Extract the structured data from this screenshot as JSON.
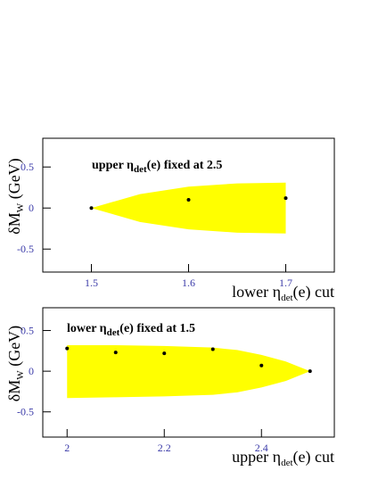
{
  "chart_data": [
    {
      "type": "scatter",
      "annotation": [
        "upper η",
        "det",
        "(e) fixed at 2.5"
      ],
      "x_label": [
        "lower η",
        "det",
        "(e) cut"
      ],
      "y_label": [
        "δM",
        "W",
        " (GeV)"
      ],
      "x": [
        1.5,
        1.6,
        1.7
      ],
      "series": [
        {
          "color": "#000000",
          "values": [
            0,
            0.1,
            0.12
          ]
        }
      ],
      "band": {
        "color": "#ffff00",
        "x": [
          1.5,
          1.55,
          1.6,
          1.65,
          1.7
        ],
        "upper": [
          0,
          0.17,
          0.26,
          0.3,
          0.31
        ],
        "lower": [
          0,
          -0.17,
          -0.26,
          -0.3,
          -0.31
        ]
      },
      "xlim": [
        1.45,
        1.75
      ],
      "xticks": [
        1.5,
        1.6,
        1.7
      ],
      "ylim": [
        -0.78,
        0.85
      ],
      "yticks": [
        -0.5,
        0,
        0.5
      ]
    },
    {
      "type": "scatter",
      "annotation": [
        "lower η",
        "det",
        "(e) fixed at 1.5"
      ],
      "x_label": [
        "upper η",
        "det",
        "(e) cut"
      ],
      "y_label": [
        "δM",
        "W",
        " (GeV)"
      ],
      "x": [
        2.0,
        2.1,
        2.2,
        2.3,
        2.4,
        2.5
      ],
      "series": [
        {
          "color": "#000000",
          "values": [
            0.28,
            0.23,
            0.22,
            0.27,
            0.07,
            0
          ]
        }
      ],
      "band": {
        "color": "#ffff00",
        "x": [
          2.0,
          2.1,
          2.2,
          2.3,
          2.35,
          2.4,
          2.45,
          2.5
        ],
        "upper": [
          0.32,
          0.32,
          0.31,
          0.29,
          0.26,
          0.2,
          0.12,
          0
        ],
        "lower": [
          -0.33,
          -0.32,
          -0.31,
          -0.29,
          -0.26,
          -0.2,
          -0.12,
          0
        ]
      },
      "xlim": [
        1.95,
        2.55
      ],
      "xticks": [
        2,
        2.2,
        2.4
      ],
      "ylim": [
        -0.81,
        0.78
      ],
      "yticks": [
        -0.5,
        0,
        0.5
      ]
    }
  ]
}
